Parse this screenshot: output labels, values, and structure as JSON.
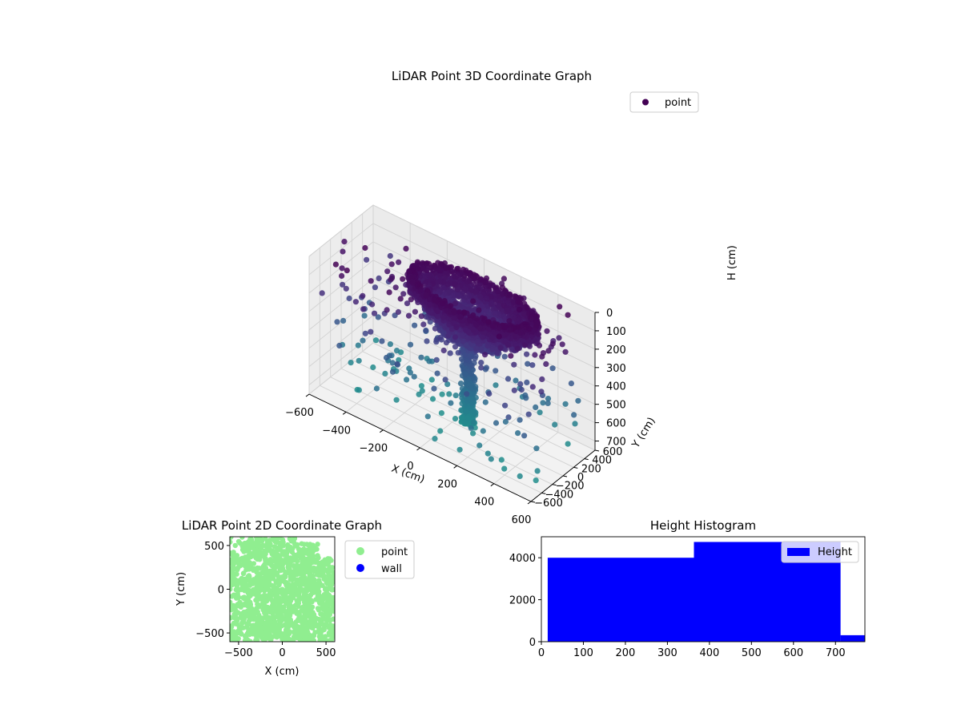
{
  "chart_data": [
    {
      "type": "scatter",
      "projection": "3d",
      "title": "LiDAR Point 3D Coordinate Graph",
      "xlabel": "X (cm)",
      "ylabel": "Y (cm)",
      "zlabel": "H (cm)",
      "xlim": [
        -600,
        600
      ],
      "ylim": [
        -600,
        600
      ],
      "zlim": [
        0,
        750
      ],
      "z_inverted": true,
      "xticks": [
        -600,
        -400,
        -200,
        0,
        200,
        400,
        600
      ],
      "yticks": [
        -600,
        -400,
        -200,
        0,
        200,
        400,
        600
      ],
      "zticks": [
        0,
        100,
        200,
        300,
        400,
        500,
        600,
        700
      ],
      "colormap": "viridis",
      "legend": {
        "position": "top-right",
        "entries": [
          {
            "label": "point",
            "color": "#440154"
          }
        ]
      },
      "grid": true,
      "series": [
        {
          "name": "point",
          "structures": [
            {
              "kind": "ring",
              "center": [
                100,
                50
              ],
              "radius": 320,
              "h_range": [
                20,
                120
              ]
            },
            {
              "kind": "ring",
              "center": [
                100,
                50
              ],
              "radius": 240,
              "h_range": [
                70,
                190
              ]
            },
            {
              "kind": "ring",
              "center": [
                80,
                30
              ],
              "radius": 150,
              "h_range": [
                150,
                260
              ]
            },
            {
              "kind": "column",
              "center": [
                80,
                30
              ],
              "radius": 40,
              "h_range": [
                250,
                740
              ]
            },
            {
              "kind": "scattered",
              "x_range": [
                -600,
                600
              ],
              "y_range": [
                -600,
                600
              ],
              "h_range": [
                0,
                740
              ]
            }
          ]
        }
      ]
    },
    {
      "type": "scatter",
      "title": "LiDAR Point 2D Coordinate Graph",
      "xlabel": "X (cm)",
      "ylabel": "Y (cm)",
      "xlim": [
        -600,
        600
      ],
      "ylim": [
        -600,
        600
      ],
      "xticks": [
        -500,
        0,
        500
      ],
      "yticks": [
        -500,
        0,
        500
      ],
      "legend": {
        "position": "outside-right",
        "entries": [
          {
            "label": "point",
            "color": "#90ee90"
          },
          {
            "label": "wall",
            "color": "#0000ff"
          }
        ]
      },
      "series": [
        {
          "name": "point",
          "color": "#90ee90",
          "coverage": "dense, covers nearly the whole square"
        },
        {
          "name": "wall",
          "color": "#0000ff",
          "values": []
        }
      ]
    },
    {
      "type": "bar",
      "title": "Height Histogram",
      "xlabel": "",
      "ylabel": "",
      "xlim": [
        0,
        770
      ],
      "ylim": [
        0,
        5000
      ],
      "xticks": [
        0,
        100,
        200,
        300,
        400,
        500,
        600,
        700
      ],
      "yticks": [
        0,
        2000,
        4000
      ],
      "color": "#0000ff",
      "legend": {
        "position": "top-right",
        "entries": [
          {
            "label": "Height",
            "color": "#0000ff"
          }
        ]
      },
      "bins": [
        {
          "start": 15,
          "end": 363,
          "count": 4000
        },
        {
          "start": 363,
          "end": 712,
          "count": 4750
        },
        {
          "start": 712,
          "end": 770,
          "count": 310
        }
      ]
    }
  ]
}
